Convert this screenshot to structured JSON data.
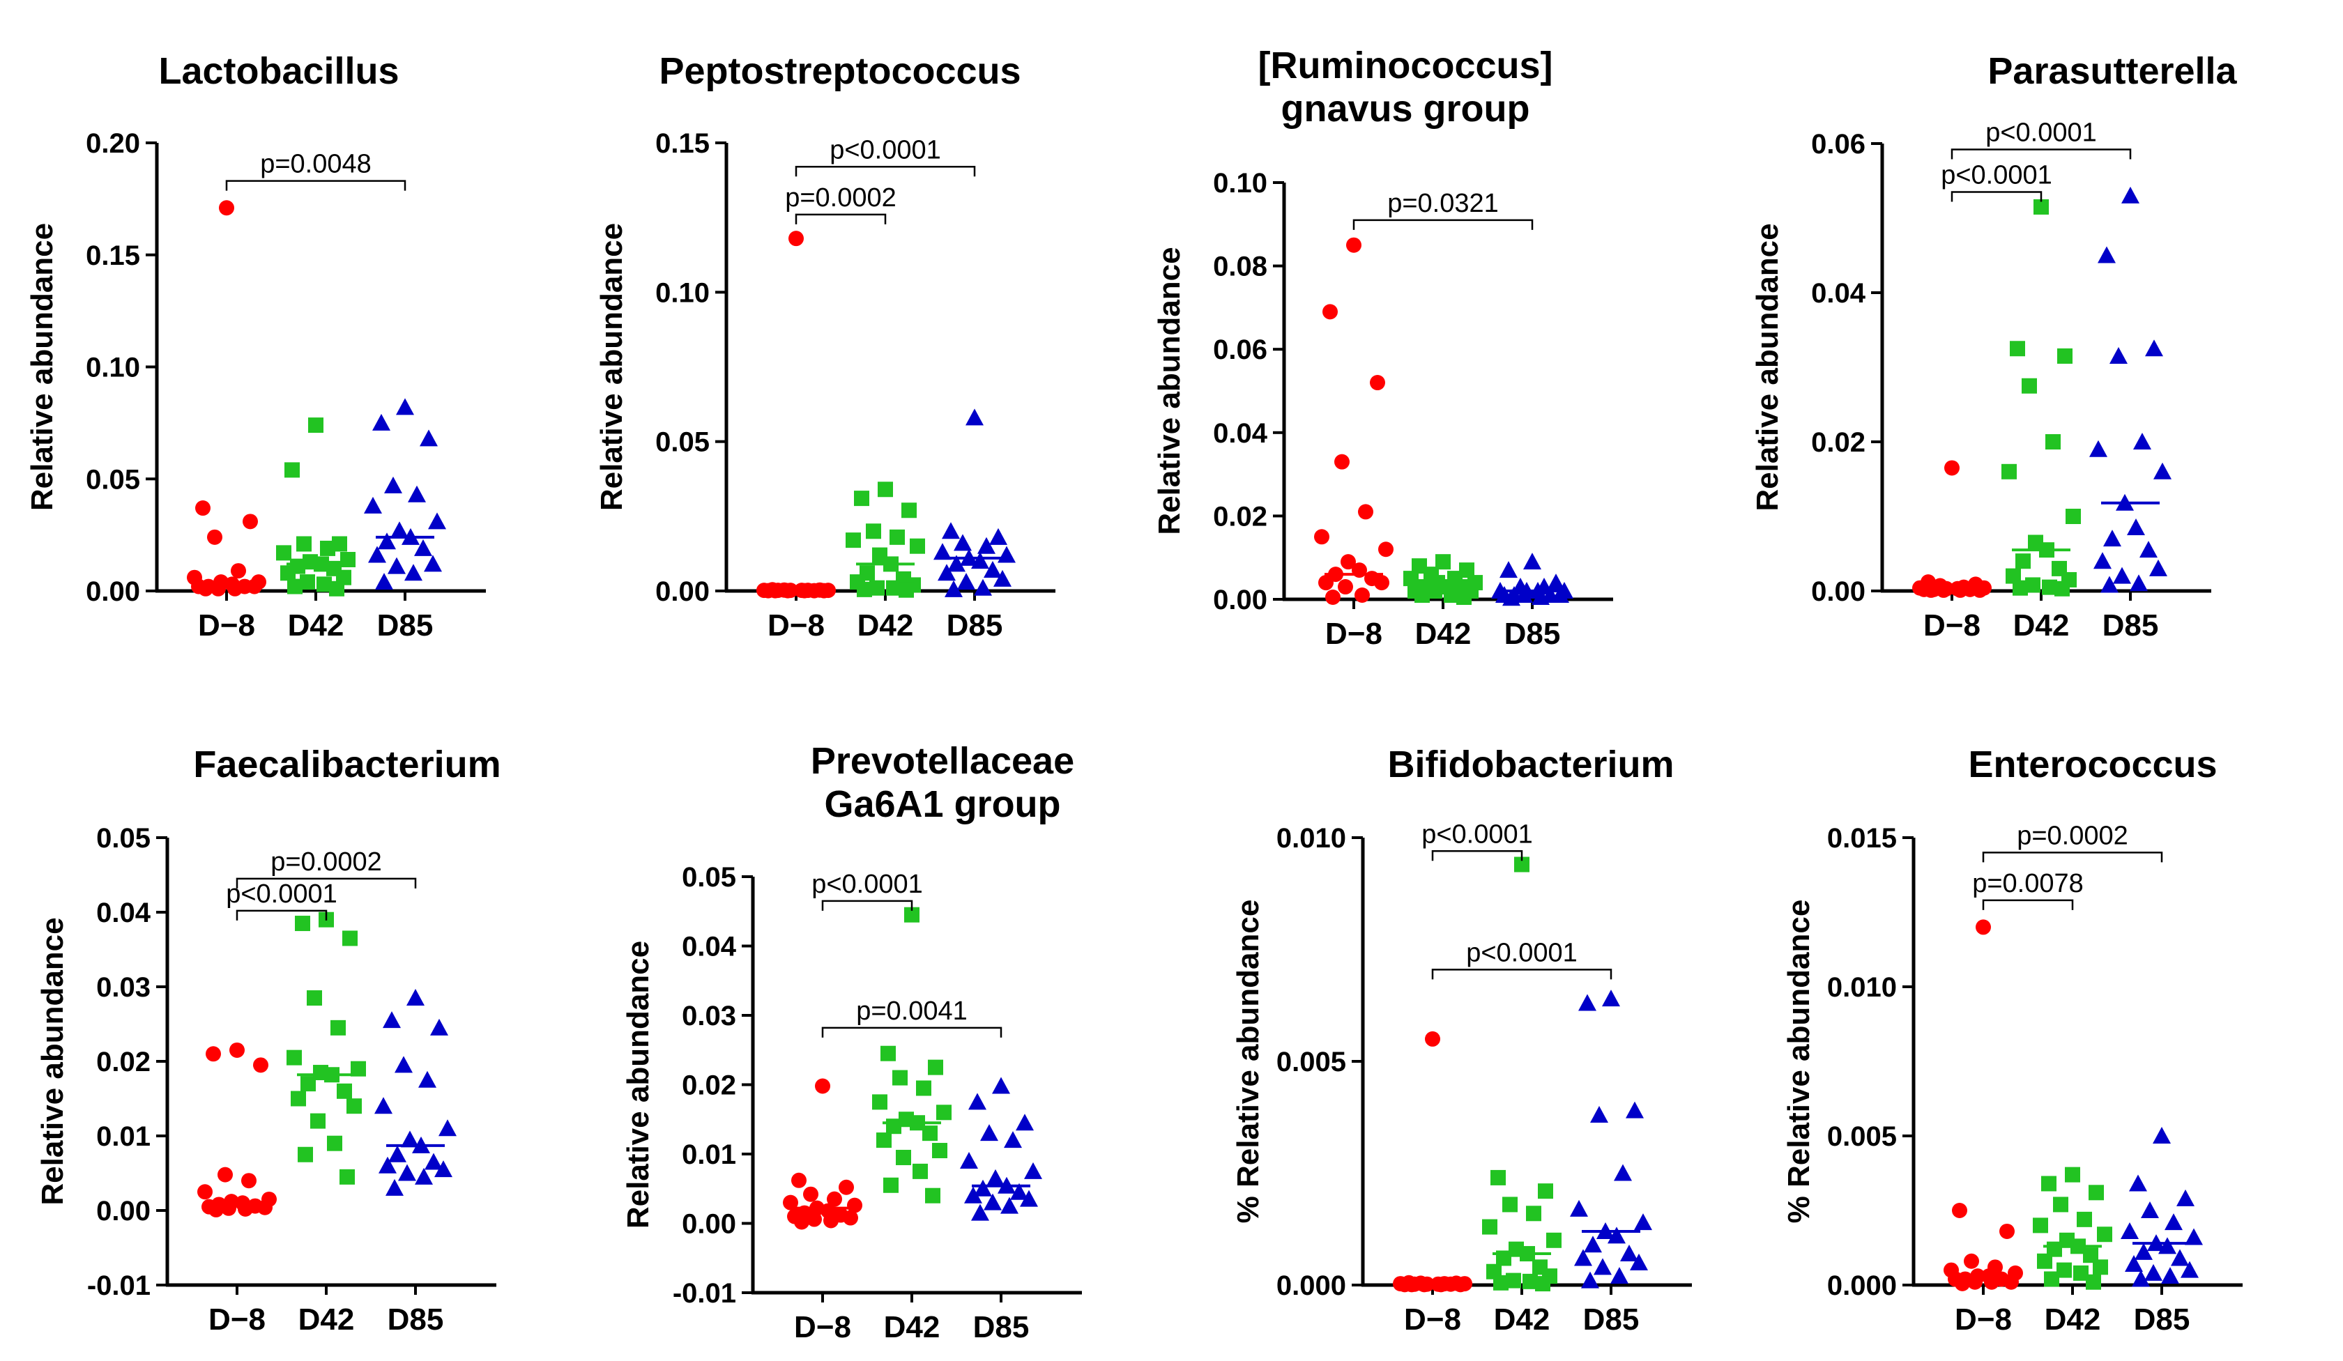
{
  "groups": [
    "D−8",
    "D42",
    "D85"
  ],
  "colors": [
    "#ff0000",
    "#22c322",
    "#0000c8"
  ],
  "chart_data": [
    {
      "type": "scatter",
      "title": [
        "Lactobacillus"
      ],
      "ylabel": "Relative abundance",
      "ylim": [
        0,
        0.2
      ],
      "yticks": [
        "0.00",
        "0.05",
        "0.10",
        "0.15",
        "0.20"
      ],
      "tickvals": [
        0,
        0.05,
        0.1,
        0.15,
        0.2
      ],
      "series": [
        {
          "name": "D−8",
          "marker": "circle",
          "median": 0.002,
          "values": [
            0.171,
            0.037,
            0.031,
            0.024,
            0.009,
            0.006,
            0.004,
            0.004,
            0.003,
            0.002,
            0.002,
            0.002,
            0.002,
            0.001,
            0.001,
            0.001
          ]
        },
        {
          "name": "D42",
          "marker": "square",
          "median": 0.012,
          "values": [
            0.074,
            0.054,
            0.021,
            0.021,
            0.019,
            0.017,
            0.014,
            0.013,
            0.012,
            0.011,
            0.01,
            0.008,
            0.006,
            0.004,
            0.003,
            0.002,
            0.001
          ]
        },
        {
          "name": "D85",
          "marker": "triangle",
          "median": 0.024,
          "values": [
            0.082,
            0.075,
            0.068,
            0.047,
            0.043,
            0.038,
            0.031,
            0.027,
            0.024,
            0.022,
            0.019,
            0.016,
            0.012,
            0.011,
            0.008,
            0.004
          ]
        }
      ],
      "brackets": [
        {
          "from": 0,
          "to": 2,
          "y": 0.183,
          "label": "p=0.0048"
        }
      ]
    },
    {
      "type": "scatter",
      "title": [
        "Peptostreptococcus"
      ],
      "ylabel": "Relative abundance",
      "ylim": [
        0,
        0.15
      ],
      "yticks": [
        "0.00",
        "0.05",
        "0.10",
        "0.15"
      ],
      "tickvals": [
        0,
        0.05,
        0.1,
        0.15
      ],
      "series": [
        {
          "name": "D−8",
          "marker": "circle",
          "median": 0.0002,
          "values": [
            0.118,
            0.0004,
            0.0003,
            0.0003,
            0.0002,
            0.0002,
            0.0002,
            0.0002,
            0.0002,
            0.0002,
            0.0001,
            0.0001,
            0.0001,
            0.0001,
            0.0001,
            0.0001
          ]
        },
        {
          "name": "D42",
          "marker": "square",
          "median": 0.009,
          "values": [
            0.034,
            0.031,
            0.027,
            0.02,
            0.018,
            0.017,
            0.015,
            0.012,
            0.009,
            0.006,
            0.004,
            0.003,
            0.002,
            0.001,
            0.001,
            0.0005,
            0.0003
          ]
        },
        {
          "name": "D85",
          "marker": "triangle",
          "median": 0.011,
          "values": [
            0.058,
            0.02,
            0.018,
            0.016,
            0.015,
            0.013,
            0.012,
            0.011,
            0.01,
            0.009,
            0.007,
            0.006,
            0.004,
            0.003,
            0.001,
            0.0005
          ]
        }
      ],
      "brackets": [
        {
          "from": 0,
          "to": 1,
          "y": 0.126,
          "label": "p=0.0002"
        },
        {
          "from": 0,
          "to": 2,
          "y": 0.142,
          "label": "p<0.0001"
        }
      ]
    },
    {
      "type": "scatter",
      "title": [
        "[Ruminococcus]",
        "gnavus group"
      ],
      "ylabel": "Relative abundance",
      "ylim": [
        0,
        0.1
      ],
      "yticks": [
        "0.00",
        "0.02",
        "0.04",
        "0.06",
        "0.08",
        "0.10"
      ],
      "tickvals": [
        0,
        0.02,
        0.04,
        0.06,
        0.08,
        0.1
      ],
      "series": [
        {
          "name": "D−8",
          "marker": "circle",
          "median": 0.006,
          "values": [
            0.085,
            0.069,
            0.052,
            0.033,
            0.021,
            0.015,
            0.012,
            0.009,
            0.007,
            0.006,
            0.005,
            0.004,
            0.004,
            0.003,
            0.001,
            0.0005
          ]
        },
        {
          "name": "D42",
          "marker": "square",
          "median": 0.003,
          "values": [
            0.009,
            0.008,
            0.007,
            0.006,
            0.005,
            0.005,
            0.004,
            0.004,
            0.003,
            0.003,
            0.003,
            0.002,
            0.002,
            0.002,
            0.001,
            0.001,
            0.0005
          ]
        },
        {
          "name": "D85",
          "marker": "triangle",
          "median": 0.002,
          "values": [
            0.009,
            0.007,
            0.004,
            0.003,
            0.003,
            0.002,
            0.002,
            0.002,
            0.002,
            0.001,
            0.001,
            0.001,
            0.001,
            0.001,
            0.0005,
            0.0003
          ]
        }
      ],
      "brackets": [
        {
          "from": 0,
          "to": 2,
          "y": 0.091,
          "label": "p=0.0321"
        }
      ]
    },
    {
      "type": "scatter",
      "title": [
        "Parasutterella"
      ],
      "ylabel": "Relative abundance",
      "ylim": [
        0,
        0.06
      ],
      "yticks": [
        "0.00",
        "0.02",
        "0.04",
        "0.06"
      ],
      "tickvals": [
        0,
        0.02,
        0.04,
        0.06
      ],
      "series": [
        {
          "name": "D−8",
          "marker": "circle",
          "median": 0.0003,
          "values": [
            0.0165,
            0.0012,
            0.0009,
            0.0007,
            0.0005,
            0.0004,
            0.0004,
            0.0003,
            0.0003,
            0.0002,
            0.0002,
            0.0002,
            0.0001,
            0.0001,
            0.0001,
            0.0001
          ]
        },
        {
          "name": "D42",
          "marker": "square",
          "median": 0.0055,
          "values": [
            0.0515,
            0.0325,
            0.0315,
            0.0275,
            0.02,
            0.016,
            0.01,
            0.0065,
            0.0055,
            0.004,
            0.003,
            0.002,
            0.0015,
            0.0008,
            0.0005,
            0.0004,
            0.0003
          ]
        },
        {
          "name": "D85",
          "marker": "triangle",
          "median": 0.0118,
          "values": [
            0.053,
            0.045,
            0.0325,
            0.0315,
            0.02,
            0.019,
            0.016,
            0.0118,
            0.0085,
            0.007,
            0.0055,
            0.004,
            0.003,
            0.002,
            0.001,
            0.0008
          ]
        }
      ],
      "brackets": [
        {
          "from": 0,
          "to": 1,
          "y": 0.0535,
          "label": "p<0.0001"
        },
        {
          "from": 0,
          "to": 2,
          "y": 0.0592,
          "label": "p<0.0001"
        }
      ]
    },
    {
      "type": "scatter",
      "title": [
        "Faecalibacterium"
      ],
      "ylabel": "Relative abundance",
      "ylim": [
        -0.01,
        0.05
      ],
      "yticks": [
        "-0.01",
        "0.00",
        "0.01",
        "0.02",
        "0.03",
        "0.04",
        "0.05"
      ],
      "tickvals": [
        -0.01,
        0,
        0.01,
        0.02,
        0.03,
        0.04,
        0.05
      ],
      "series": [
        {
          "name": "D−8",
          "marker": "circle",
          "median": 0.0006,
          "values": [
            0.0215,
            0.021,
            0.0195,
            0.0048,
            0.004,
            0.0025,
            0.0015,
            0.0012,
            0.001,
            0.0008,
            0.0006,
            0.0005,
            0.0004,
            0.0003,
            0.0002,
            0.0001
          ]
        },
        {
          "name": "D42",
          "marker": "square",
          "median": 0.0182,
          "values": [
            0.039,
            0.0385,
            0.0365,
            0.0285,
            0.0245,
            0.0205,
            0.019,
            0.0185,
            0.0182,
            0.017,
            0.016,
            0.015,
            0.014,
            0.012,
            0.009,
            0.0075,
            0.0045
          ]
        },
        {
          "name": "D85",
          "marker": "triangle",
          "median": 0.0087,
          "values": [
            0.0285,
            0.0255,
            0.0245,
            0.0195,
            0.0175,
            0.014,
            0.011,
            0.0095,
            0.0087,
            0.0075,
            0.0065,
            0.006,
            0.0055,
            0.005,
            0.0045,
            0.003
          ]
        }
      ],
      "brackets": [
        {
          "from": 0,
          "to": 1,
          "y": 0.0402,
          "label": "p<0.0001"
        },
        {
          "from": 0,
          "to": 2,
          "y": 0.0445,
          "label": "p=0.0002"
        }
      ]
    },
    {
      "type": "scatter",
      "title": [
        "Prevotellaceae",
        "Ga6A1 group"
      ],
      "ylabel": "Relative abundance",
      "ylim": [
        -0.01,
        0.05
      ],
      "yticks": [
        "-0.01",
        "0.00",
        "0.01",
        "0.02",
        "0.03",
        "0.04",
        "0.05"
      ],
      "tickvals": [
        -0.01,
        0,
        0.01,
        0.02,
        0.03,
        0.04,
        0.05
      ],
      "series": [
        {
          "name": "D−8",
          "marker": "circle",
          "median": 0.0022,
          "values": [
            0.0198,
            0.0062,
            0.0052,
            0.0042,
            0.0035,
            0.003,
            0.0026,
            0.0022,
            0.0018,
            0.0015,
            0.0012,
            0.001,
            0.0008,
            0.0006,
            0.0004,
            0.0002
          ]
        },
        {
          "name": "D42",
          "marker": "square",
          "median": 0.0145,
          "values": [
            0.0445,
            0.0245,
            0.0225,
            0.021,
            0.0195,
            0.0175,
            0.016,
            0.015,
            0.0145,
            0.014,
            0.013,
            0.012,
            0.0105,
            0.0095,
            0.0075,
            0.0055,
            0.004
          ]
        },
        {
          "name": "D85",
          "marker": "triangle",
          "median": 0.0054,
          "values": [
            0.0198,
            0.0175,
            0.0145,
            0.013,
            0.012,
            0.009,
            0.0075,
            0.0065,
            0.0054,
            0.005,
            0.0045,
            0.004,
            0.0035,
            0.003,
            0.0025,
            0.0015
          ]
        }
      ],
      "brackets": [
        {
          "from": 0,
          "to": 1,
          "y": 0.0465,
          "label": "p<0.0001"
        },
        {
          "from": 0,
          "to": 2,
          "y": 0.0282,
          "label": "p=0.0041"
        }
      ]
    },
    {
      "type": "scatter",
      "title": [
        "Bifidobacterium"
      ],
      "ylabel": "% Relative abundance",
      "ylim": [
        0,
        0.01
      ],
      "yticks": [
        "0.000",
        "0.005",
        "0.010"
      ],
      "tickvals": [
        0,
        0.005,
        0.01
      ],
      "series": [
        {
          "name": "D−8",
          "marker": "circle",
          "median": 2e-05,
          "values": [
            0.0055,
            5e-05,
            4e-05,
            4e-05,
            3e-05,
            3e-05,
            3e-05,
            2e-05,
            2e-05,
            2e-05,
            2e-05,
            1e-05,
            1e-05,
            1e-05,
            1e-05,
            1e-05
          ]
        },
        {
          "name": "D42",
          "marker": "square",
          "median": 0.0007,
          "values": [
            0.0094,
            0.0024,
            0.0021,
            0.0018,
            0.0016,
            0.0013,
            0.001,
            0.0008,
            0.0007,
            0.0006,
            0.0004,
            0.0003,
            0.0002,
            0.0001,
            8e-05,
            5e-05,
            3e-05
          ]
        },
        {
          "name": "D85",
          "marker": "triangle",
          "median": 0.0012,
          "values": [
            0.0064,
            0.0063,
            0.0039,
            0.0038,
            0.0025,
            0.0017,
            0.0014,
            0.0012,
            0.0011,
            0.0009,
            0.0007,
            0.0006,
            0.0005,
            0.0004,
            0.0002,
            0.0001
          ]
        }
      ],
      "brackets": [
        {
          "from": 0,
          "to": 1,
          "y": 0.0097,
          "label": "p<0.0001"
        },
        {
          "from": 0,
          "to": 2,
          "y": 0.00705,
          "label": "p<0.0001"
        }
      ]
    },
    {
      "type": "scatter",
      "title": [
        "Enterococcus"
      ],
      "ylabel": "% Relative abundance",
      "ylim": [
        0,
        0.015
      ],
      "yticks": [
        "0.000",
        "0.005",
        "0.010",
        "0.015"
      ],
      "tickvals": [
        0,
        0.005,
        0.01,
        0.015
      ],
      "series": [
        {
          "name": "D−8",
          "marker": "circle",
          "median": 0.0003,
          "values": [
            0.012,
            0.0025,
            0.0018,
            0.0008,
            0.0006,
            0.0005,
            0.0004,
            0.0003,
            0.0003,
            0.0002,
            0.0002,
            0.0002,
            0.0001,
            0.0001,
            0.0001,
            5e-05
          ]
        },
        {
          "name": "D42",
          "marker": "square",
          "median": 0.0013,
          "values": [
            0.0037,
            0.0034,
            0.0031,
            0.0027,
            0.0022,
            0.002,
            0.0017,
            0.0015,
            0.0013,
            0.0012,
            0.001,
            0.0008,
            0.0006,
            0.0005,
            0.0004,
            0.0002,
            0.0001
          ]
        },
        {
          "name": "D85",
          "marker": "triangle",
          "median": 0.0014,
          "values": [
            0.005,
            0.0034,
            0.0029,
            0.0025,
            0.0021,
            0.0018,
            0.0016,
            0.0014,
            0.0013,
            0.0011,
            0.0009,
            0.0007,
            0.0005,
            0.0004,
            0.0003,
            0.0002
          ]
        }
      ],
      "brackets": [
        {
          "from": 0,
          "to": 1,
          "y": 0.0129,
          "label": "p=0.0078"
        },
        {
          "from": 0,
          "to": 2,
          "y": 0.0145,
          "label": "p=0.0002"
        }
      ]
    }
  ]
}
